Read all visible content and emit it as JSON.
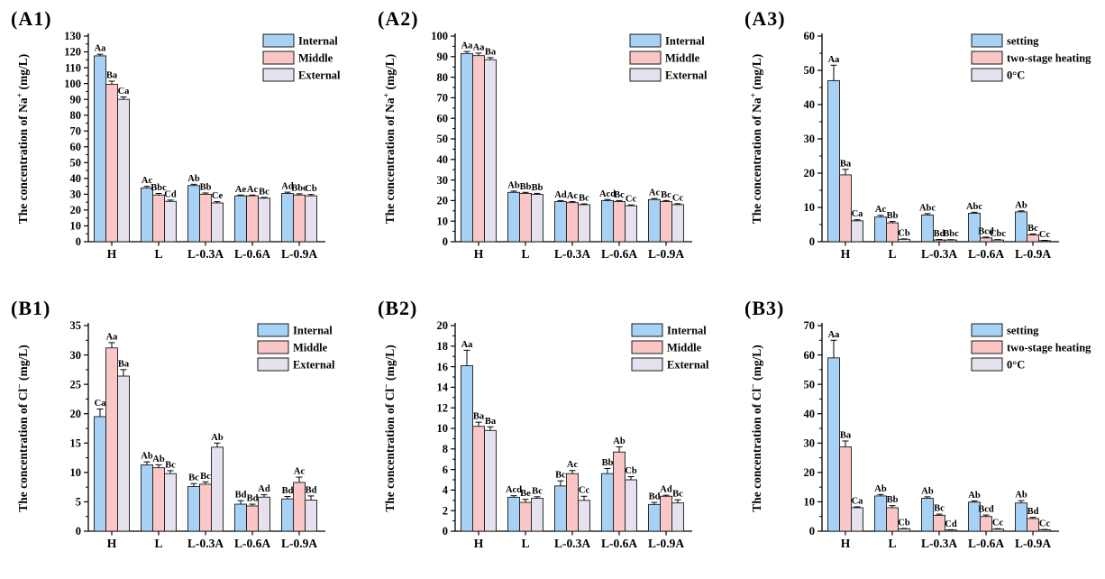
{
  "colors": {
    "series_fills": [
      "#a7d1f5",
      "#fbc6c6",
      "#e5e1ef"
    ],
    "bar_stroke": "#1a1a1a",
    "axis": "#000000",
    "background": "#ffffff"
  },
  "chart_data": [
    {
      "id": "A1",
      "type": "bar",
      "panel_label": "(A1)",
      "ylabel": {
        "before_sup": "The concentration of Na",
        "sup": "+",
        "after_sup": " (mg/L)"
      },
      "ylim": [
        0,
        130
      ],
      "ystep": 10,
      "grid": false,
      "categories": [
        "H",
        "L",
        "L-0.3A",
        "L-0.6A",
        "L-0.9A"
      ],
      "legend": {
        "position": "top-right",
        "x": 286,
        "entries": [
          "Internal",
          "Middle",
          "External"
        ]
      },
      "series": [
        {
          "name": "Internal",
          "values": [
            117.5,
            34,
            35.5,
            29,
            30.5
          ],
          "errors": [
            1,
            1,
            0.8,
            0.5,
            0.8
          ],
          "sig_labels": [
            "Aa",
            "Ac",
            "Ab",
            "Ae",
            "Ad"
          ]
        },
        {
          "name": "Middle",
          "values": [
            99.5,
            29.5,
            30,
            29,
            29.5
          ],
          "errors": [
            2,
            1,
            0.8,
            0.5,
            0.8
          ],
          "sig_labels": [
            "Ba",
            "Bbc",
            "Bb",
            "Ac",
            "Bbc"
          ]
        },
        {
          "name": "External",
          "values": [
            90,
            25.5,
            24.5,
            27.5,
            29
          ],
          "errors": [
            1.5,
            0.8,
            0.8,
            0.5,
            0.8
          ],
          "sig_labels": [
            "Ca",
            "Cd",
            "Ce",
            "Bc",
            "Cb"
          ]
        }
      ]
    },
    {
      "id": "A2",
      "type": "bar",
      "panel_label": "(A2)",
      "ylabel": {
        "before_sup": "The concentration of Na",
        "sup": "+",
        "after_sup": " (mg/L)"
      },
      "ylim": [
        0,
        100
      ],
      "ystep": 10,
      "grid": false,
      "categories": [
        "H",
        "L",
        "L-0.3A",
        "L-0.6A",
        "L-0.9A"
      ],
      "legend": {
        "position": "top-right",
        "x": 286,
        "entries": [
          "Internal",
          "Middle",
          "External"
        ]
      },
      "series": [
        {
          "name": "Internal",
          "values": [
            91.5,
            24,
            19.5,
            20,
            20.5
          ],
          "errors": [
            1,
            0.6,
            0.5,
            0.5,
            0.5
          ],
          "sig_labels": [
            "Aa",
            "Ab",
            "Ad",
            "Acd",
            "Ac"
          ]
        },
        {
          "name": "Middle",
          "values": [
            90.5,
            23.5,
            19,
            19.5,
            19.5
          ],
          "errors": [
            1.2,
            0.5,
            0.5,
            0.5,
            0.5
          ],
          "sig_labels": [
            "Aa",
            "Bb",
            "Ac",
            "Bc",
            "Bc"
          ]
        },
        {
          "name": "External",
          "values": [
            88.5,
            23,
            18,
            17.5,
            18
          ],
          "errors": [
            1,
            0.5,
            0.4,
            0.4,
            0.5
          ],
          "sig_labels": [
            "Ba",
            "Bb",
            "Bc",
            "Cc",
            "Cc"
          ]
        }
      ]
    },
    {
      "id": "A3",
      "type": "bar",
      "panel_label": "(A3)",
      "ylabel": {
        "before_sup": "The concentration of Na",
        "sup": "+",
        "after_sup": " (mg/L)"
      },
      "ylim": [
        0,
        60
      ],
      "ystep": 10,
      "grid": false,
      "categories": [
        "H",
        "L",
        "L-0.3A",
        "L-0.6A",
        "L-0.9A"
      ],
      "legend": {
        "position": "top-right",
        "x": 258,
        "entries": [
          "setting",
          "two-stage heating",
          "0°C"
        ]
      },
      "series": [
        {
          "name": "setting",
          "values": [
            47,
            7.2,
            7.8,
            8.3,
            8.7
          ],
          "errors": [
            4.5,
            0.5,
            0.4,
            0.3,
            0.3
          ],
          "sig_labels": [
            "Aa",
            "Ac",
            "Abc",
            "Abc",
            "Ab"
          ]
        },
        {
          "name": "two-stage heating",
          "values": [
            19.5,
            5.5,
            0.5,
            1.1,
            2.0
          ],
          "errors": [
            1.6,
            0.4,
            0.15,
            0.25,
            0.25
          ],
          "sig_labels": [
            "Ba",
            "Bb",
            "Bd",
            "Bcd",
            "Bc"
          ]
        },
        {
          "name": "0°C",
          "values": [
            6.1,
            0.7,
            0.5,
            0.5,
            0.3
          ],
          "errors": [
            0.3,
            0.12,
            0.1,
            0.12,
            0.1
          ],
          "sig_labels": [
            "Ca",
            "Cb",
            "Bbc",
            "Cbc",
            "Cc"
          ]
        }
      ]
    },
    {
      "id": "B1",
      "type": "bar",
      "panel_label": "(B1)",
      "ylabel": {
        "before_sup": "The concentration of Cl",
        "sup": "−",
        "after_sup": " (mg/L)"
      },
      "ylim": [
        0,
        35
      ],
      "ystep": 5,
      "grid": false,
      "categories": [
        "H",
        "L",
        "L-0.3A",
        "L-0.6A",
        "L-0.9A"
      ],
      "legend": {
        "position": "top-right",
        "x": 280,
        "entries": [
          "Internal",
          "Middle",
          "External"
        ]
      },
      "series": [
        {
          "name": "Internal",
          "values": [
            19.5,
            11.3,
            7.6,
            4.6,
            5.5
          ],
          "errors": [
            1.3,
            0.5,
            0.5,
            0.6,
            0.4
          ],
          "sig_labels": [
            "Ca",
            "Ab",
            "Bc",
            "Bd",
            "Bd"
          ]
        },
        {
          "name": "Middle",
          "values": [
            31.2,
            10.8,
            8.0,
            4.3,
            8.3
          ],
          "errors": [
            0.9,
            0.5,
            0.4,
            0.3,
            0.9
          ],
          "sig_labels": [
            "Aa",
            "Ab",
            "Bc",
            "Bd",
            "Ac"
          ]
        },
        {
          "name": "External",
          "values": [
            26.4,
            9.8,
            14.3,
            5.8,
            5.3
          ],
          "errors": [
            1.1,
            0.5,
            0.7,
            0.4,
            0.7
          ],
          "sig_labels": [
            "Ba",
            "Bc",
            "Ab",
            "Ad",
            "Bd"
          ]
        }
      ]
    },
    {
      "id": "B2",
      "type": "bar",
      "panel_label": "(B2)",
      "ylabel": {
        "before_sup": "The concentration of Cl",
        "sup": "−",
        "after_sup": " (mg/L)"
      },
      "ylim": [
        0,
        20
      ],
      "ystep": 2,
      "grid": false,
      "categories": [
        "H",
        "L",
        "L-0.3A",
        "L-0.6A",
        "L-0.9A"
      ],
      "legend": {
        "position": "top-right",
        "x": 288,
        "entries": [
          "Internal",
          "Middle",
          "External"
        ]
      },
      "series": [
        {
          "name": "Internal",
          "values": [
            16.1,
            3.3,
            4.4,
            5.6,
            2.6
          ],
          "errors": [
            1.5,
            0.15,
            0.5,
            0.5,
            0.2
          ],
          "sig_labels": [
            "Aa",
            "Acd",
            "Bc",
            "Bb",
            "Bd"
          ]
        },
        {
          "name": "Middle",
          "values": [
            10.2,
            2.8,
            5.6,
            7.7,
            3.4
          ],
          "errors": [
            0.4,
            0.3,
            0.3,
            0.5,
            0.1
          ],
          "sig_labels": [
            "Ba",
            "Be",
            "Ac",
            "Ab",
            "Ad"
          ]
        },
        {
          "name": "External",
          "values": [
            9.8,
            3.2,
            3.0,
            5.0,
            2.75
          ],
          "errors": [
            0.35,
            0.15,
            0.4,
            0.3,
            0.3
          ],
          "sig_labels": [
            "Ba",
            "Bc",
            "Cc",
            "Cb",
            "Bc"
          ]
        }
      ]
    },
    {
      "id": "B3",
      "type": "bar",
      "panel_label": "(B3)",
      "ylabel": {
        "before_sup": "The concentration of Cl",
        "sup": "−",
        "after_sup": " (mg/L)"
      },
      "ylim": [
        0,
        70
      ],
      "ystep": 10,
      "grid": false,
      "categories": [
        "H",
        "L",
        "L-0.3A",
        "L-0.6A",
        "L-0.9A"
      ],
      "legend": {
        "position": "top-right",
        "x": 258,
        "entries": [
          "setting",
          "two-stage heating",
          "0°C"
        ]
      },
      "series": [
        {
          "name": "setting",
          "values": [
            59,
            12,
            11.2,
            9.9,
            9.6
          ],
          "errors": [
            6,
            0.5,
            0.5,
            0.4,
            0.8
          ],
          "sig_labels": [
            "Aa",
            "Ab",
            "Ab",
            "Ab",
            "Ab"
          ]
        },
        {
          "name": "two-stage heating",
          "values": [
            28.7,
            8,
            5.4,
            5.0,
            4.3
          ],
          "errors": [
            2,
            0.7,
            0.4,
            0.5,
            0.4
          ],
          "sig_labels": [
            "Ba",
            "Bb",
            "Bc",
            "Bcd",
            "Bd"
          ]
        },
        {
          "name": "0°C",
          "values": [
            8,
            0.8,
            0.4,
            0.7,
            0.5
          ],
          "errors": [
            0.3,
            0.15,
            0.1,
            0.15,
            0.1
          ],
          "sig_labels": [
            "Ca",
            "Cb",
            "Cd",
            "Cc",
            "Cc"
          ]
        }
      ]
    }
  ]
}
